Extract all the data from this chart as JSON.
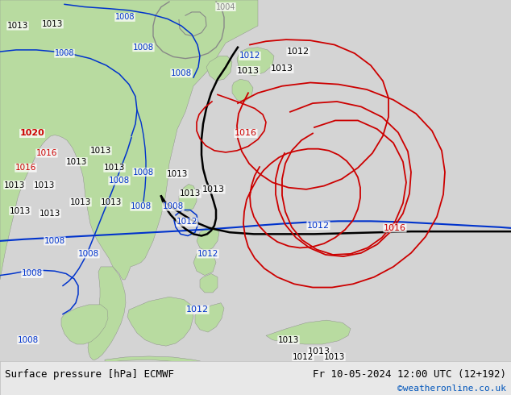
{
  "title_left": "Surface pressure [hPa] ECMWF",
  "title_right": "Fr 10-05-2024 12:00 UTC (12+192)",
  "credit": "©weatheronline.co.uk",
  "bg_color": "#e0e0e0",
  "map_bg_color": "#d4d4d4",
  "land_color": "#b8dba0",
  "bottom_bar_color": "#e8e8e8",
  "title_color": "#000000",
  "credit_color": "#0055bb",
  "fig_width": 6.34,
  "fig_height": 4.9,
  "dpi": 100,
  "font_size_title": 9.0,
  "font_size_credit": 8.0,
  "blue": "#0033cc",
  "black": "#000000",
  "red": "#cc0000",
  "gray": "#888888",
  "dark_gray": "#555555"
}
